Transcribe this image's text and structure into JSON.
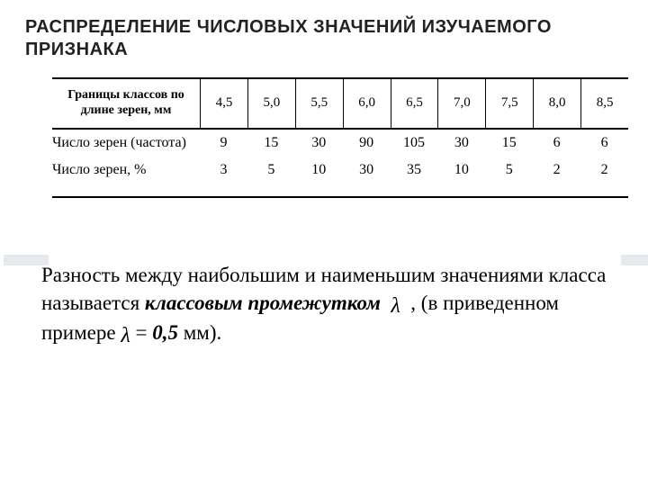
{
  "title": "РАСПРЕДЕЛЕНИЕ ЧИСЛОВЫХ ЗНАЧЕНИЙ ИЗУЧАЕМОГО ПРИЗНАКА",
  "table": {
    "header_label": "Границы классов по длине зерен, мм",
    "header_values": [
      "4,5",
      "5,0",
      "5,5",
      "6,0",
      "6,5",
      "7,0",
      "7,5",
      "8,0",
      "8,5"
    ],
    "rows": [
      {
        "label": "Число зерен (час­тота)",
        "values": [
          "9",
          "15",
          "30",
          "90",
          "105",
          "30",
          "15",
          "6",
          "6"
        ]
      },
      {
        "label": "Число зерен, %",
        "values": [
          "3",
          "5",
          "10",
          "30",
          "35",
          "10",
          "5",
          "2",
          "2"
        ]
      }
    ],
    "header_fontsize": 14,
    "cell_fontsize": 16,
    "border_color": "#000000"
  },
  "caption": {
    "pre": "Разность между наибольшим и наименьшим значениями класса называется ",
    "term": "классовым промежутком",
    "lambda": "λ",
    "mid": " , (в приведенном примере ",
    "eq": " = ",
    "val": "0,5",
    "unit": " мм)."
  }
}
